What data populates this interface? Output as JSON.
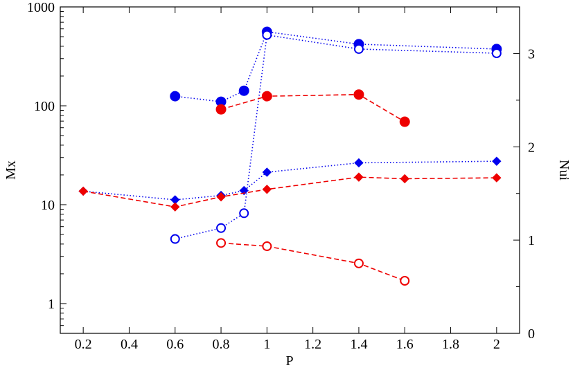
{
  "chart_data": {
    "type": "scatter",
    "title": "",
    "xlabel": "P",
    "ylabel_left": "Mx",
    "ylabel_right": "Nui",
    "xlim": [
      0.1,
      2.1
    ],
    "ylim_left": [
      0.5,
      1000
    ],
    "ylim_left_scale": "log",
    "ylim_right": [
      0,
      3.5
    ],
    "grid": false,
    "legend": "none",
    "x_ticks": [
      0.2,
      0.4,
      0.6,
      0.8,
      1,
      1.2,
      1.4,
      1.6,
      1.8,
      2
    ],
    "x_tick_labels": [
      "0.2",
      "0.4",
      "0.6",
      "0.8",
      "1",
      "1.2",
      "1.4",
      "1.6",
      "1.8",
      "2"
    ],
    "y_left_ticks": [
      1,
      10,
      100,
      1000
    ],
    "y_left_tick_labels": [
      "1",
      "10",
      "100",
      "1000"
    ],
    "y_right_ticks": [
      0,
      1,
      2,
      3
    ],
    "y_right_tick_labels": [
      "0",
      "1",
      "2",
      "3"
    ],
    "series": [
      {
        "name": "blue filled circles",
        "axis": "left",
        "marker": "circle-filled",
        "line": "dotted",
        "color": "#0000ee",
        "x": [
          0.6,
          0.8,
          0.9,
          1.0,
          1.4,
          2.0
        ],
        "y": [
          125,
          110,
          142,
          560,
          420,
          375
        ]
      },
      {
        "name": "blue open circles",
        "axis": "left",
        "marker": "circle-open",
        "line": "dotted",
        "color": "#0000ee",
        "x": [
          0.6,
          0.8,
          0.9,
          1.0,
          1.4,
          2.0
        ],
        "y": [
          4.5,
          5.8,
          8.2,
          520,
          375,
          340
        ]
      },
      {
        "name": "red filled circles",
        "axis": "left",
        "marker": "circle-filled",
        "line": "dashed",
        "color": "#ee0000",
        "x": [
          0.8,
          1.0,
          1.4,
          1.6
        ],
        "y": [
          92,
          125,
          130,
          69
        ]
      },
      {
        "name": "red open circles",
        "axis": "left",
        "marker": "circle-open",
        "line": "dashed",
        "color": "#ee0000",
        "x": [
          0.8,
          1.0,
          1.4,
          1.6
        ],
        "y": [
          4.1,
          3.8,
          2.55,
          1.7
        ]
      },
      {
        "name": "blue diamonds",
        "axis": "left",
        "marker": "diamond",
        "line": "dotted",
        "color": "#0000ee",
        "x": [
          0.2,
          0.6,
          0.8,
          0.9,
          1.0,
          1.4,
          2.0
        ],
        "y": [
          13.7,
          11.2,
          12.4,
          13.9,
          21.3,
          26.5,
          27.5
        ]
      },
      {
        "name": "red diamonds",
        "axis": "left",
        "marker": "diamond",
        "line": "dashed",
        "color": "#ee0000",
        "x": [
          0.2,
          0.6,
          0.8,
          1.0,
          1.4,
          1.6,
          2.0
        ],
        "y": [
          13.7,
          9.5,
          12.0,
          14.3,
          19.0,
          18.3,
          18.7
        ]
      }
    ]
  }
}
